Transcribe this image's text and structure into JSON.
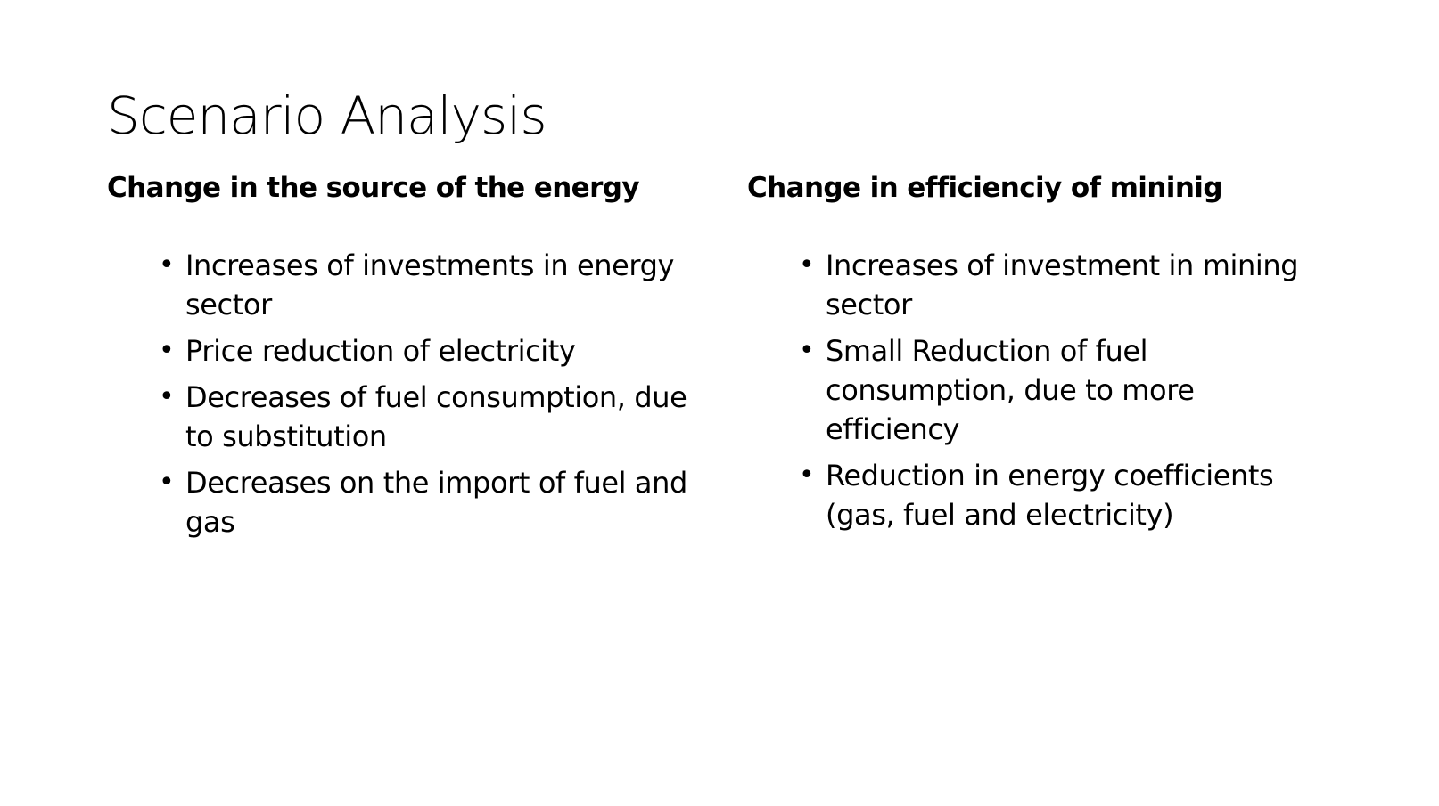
{
  "slide": {
    "title": "Scenario Analysis",
    "columns": [
      {
        "heading": "Change in the source of the energy",
        "bullets": [
          "Increases of investments in energy sector",
          "Price reduction of electricity",
          "Decreases of fuel consumption, due to substitution",
          "Decreases on the import of fuel and gas"
        ]
      },
      {
        "heading": "Change in efficienciy of mininig",
        "bullets": [
          "Increases of investment in mining sector",
          "Small Reduction of fuel consumption, due to more efficiency",
          "Reduction in energy coefficients (gas, fuel and electricity)"
        ]
      }
    ]
  }
}
